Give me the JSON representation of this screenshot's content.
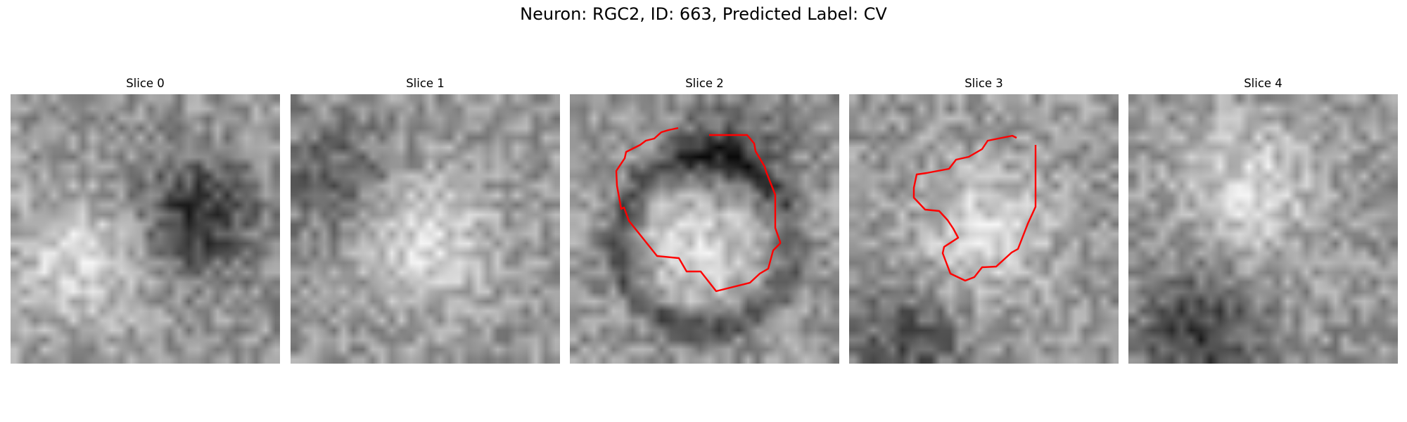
{
  "figure": {
    "title": "Neuron: RGC2, ID: 663, Predicted Label: CV",
    "contour_color": "#ff0000",
    "colormap": "gray",
    "grid_size": 28,
    "panels": [
      {
        "title": "Slice 0",
        "has_contour": false,
        "bright_center": [
          0.25,
          0.62
        ],
        "dark_center": [
          0.7,
          0.45
        ],
        "dark_strength": 0.9
      },
      {
        "title": "Slice 1",
        "has_contour": false,
        "bright_center": [
          0.5,
          0.55
        ],
        "dark_center": [
          0.15,
          0.3
        ],
        "dark_strength": 0.5
      },
      {
        "title": "Slice 2",
        "has_contour": true,
        "bright_center": [
          0.5,
          0.55
        ],
        "dark_center": [
          0.6,
          0.2
        ],
        "dark_strength": 0.6
      },
      {
        "title": "Slice 3",
        "has_contour": true,
        "bright_center": [
          0.5,
          0.5
        ],
        "dark_center": [
          0.2,
          0.95
        ],
        "dark_strength": 0.6
      },
      {
        "title": "Slice 4",
        "has_contour": false,
        "bright_center": [
          0.45,
          0.35
        ],
        "dark_center": [
          0.25,
          0.9
        ],
        "dark_strength": 0.8
      }
    ]
  }
}
